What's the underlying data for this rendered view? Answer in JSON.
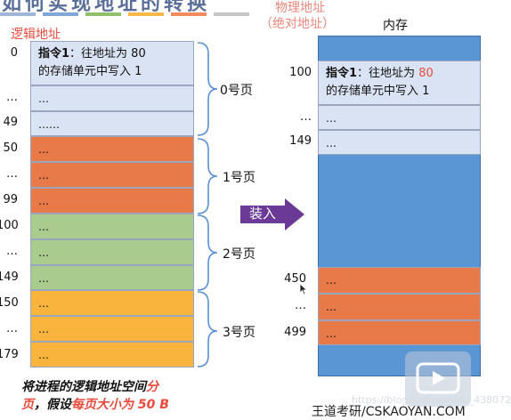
{
  "header": {
    "title": "如何实现地址的转换"
  },
  "logical": {
    "label": "逻辑地址",
    "instruction": {
      "bold": "指令1",
      "line1_rest": "：往地址为 80",
      "line2": "的存储单元中写入 1"
    },
    "rows": [
      {
        "addr": "0",
        "text": ""
      },
      {
        "addr": "…",
        "text": "…"
      },
      {
        "addr": "49",
        "text": "……"
      },
      {
        "addr": "50",
        "text": "…"
      },
      {
        "addr": "…",
        "text": "…"
      },
      {
        "addr": "99",
        "text": "…"
      },
      {
        "addr": "100",
        "text": "…"
      },
      {
        "addr": "…",
        "text": "…"
      },
      {
        "addr": "149",
        "text": "…"
      },
      {
        "addr": "150",
        "text": "…"
      },
      {
        "addr": "…",
        "text": "…"
      },
      {
        "addr": "179",
        "text": "…"
      }
    ],
    "pages": [
      "0号页",
      "1号页",
      "2号页",
      "3号页"
    ]
  },
  "arrow": {
    "label": "装入"
  },
  "physical": {
    "label_line1": "物理地址",
    "label_line2": "（绝对地址）",
    "memory_label": "内存",
    "instruction": {
      "bold": "指令1",
      "line1_pre": "：往地址为 ",
      "line1_num": "80",
      "line2": "的存储单元中写入 1"
    },
    "rows_blue": [
      {
        "addr": "100",
        "text": ""
      },
      {
        "addr": "…",
        "text": "…"
      },
      {
        "addr": "149",
        "text": "…"
      }
    ],
    "rows_orange": [
      {
        "addr": "450",
        "text": "…"
      },
      {
        "addr": "…",
        "text": "…"
      },
      {
        "addr": "499",
        "text": "…"
      }
    ]
  },
  "caption": {
    "p1": "将进程的逻辑地址空间",
    "red1": "分",
    "p2": "页",
    "p3": "，假设",
    "red2": "每页大小为 50 B"
  },
  "watermark": "王道考研/CSKAOYAN.COM",
  "faint_url": "https://blog.csdn.net/qq_43807296",
  "colors": {
    "blue_light": "#dae3f3",
    "orange": "#e87a49",
    "green": "#a9cb8d",
    "yellow": "#f9b43d",
    "memory": "#5b96d4",
    "arrow": "#6a3a96",
    "red": "#e84b3c"
  }
}
